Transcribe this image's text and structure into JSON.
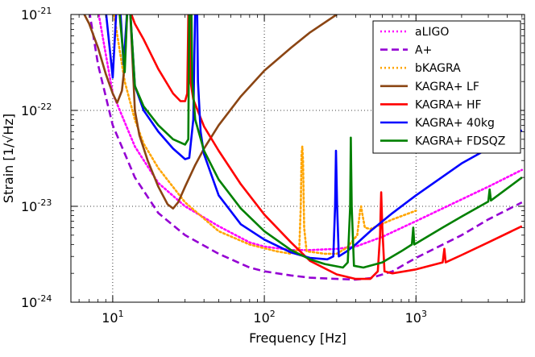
{
  "chart_data": {
    "type": "line",
    "title": "",
    "xlabel": "Frequency [Hz]",
    "ylabel": "Strain [1/√Hz]",
    "xscale": "log",
    "yscale": "log",
    "xlim": [
      5.3,
      5200
    ],
    "ylim": [
      1e-24,
      1e-21
    ],
    "grid": true,
    "legend_position": "top-right",
    "x_ticks": [
      {
        "value": 10,
        "base": "10",
        "exp": "1"
      },
      {
        "value": 100,
        "base": "10",
        "exp": "2"
      },
      {
        "value": 1000,
        "base": "10",
        "exp": "3"
      }
    ],
    "y_ticks": [
      {
        "value": 1e-24,
        "base": "10",
        "exp": "-24"
      },
      {
        "value": 1e-23,
        "base": "10",
        "exp": "-23"
      },
      {
        "value": 1e-22,
        "base": "10",
        "exp": "-22"
      },
      {
        "value": 1e-21,
        "base": "10",
        "exp": "-21"
      }
    ],
    "series": [
      {
        "name": "aLIGO",
        "color": "#ff00ff",
        "style": "dotted",
        "points": [
          [
            8,
            1.1e-21
          ],
          [
            10,
            1.5e-22
          ],
          [
            14,
            4.2e-23
          ],
          [
            20,
            1.75e-23
          ],
          [
            30,
            1e-23
          ],
          [
            50,
            6.2e-24
          ],
          [
            80,
            4.2e-24
          ],
          [
            100,
            3.8e-24
          ],
          [
            150,
            3.5e-24
          ],
          [
            200,
            3.5e-24
          ],
          [
            300,
            3.6e-24
          ],
          [
            400,
            3.8e-24
          ],
          [
            600,
            4.8e-24
          ],
          [
            1000,
            7e-24
          ],
          [
            2000,
            1.18e-23
          ],
          [
            3000,
            1.6e-23
          ],
          [
            5000,
            2.4e-23
          ]
        ]
      },
      {
        "name": "A+",
        "color": "#9400d3",
        "style": "dashed",
        "points": [
          [
            7,
            1.1e-21
          ],
          [
            8,
            3e-22
          ],
          [
            10,
            7e-23
          ],
          [
            14,
            2e-23
          ],
          [
            20,
            8.5e-24
          ],
          [
            30,
            5e-24
          ],
          [
            50,
            3.2e-24
          ],
          [
            80,
            2.3e-24
          ],
          [
            100,
            2.1e-24
          ],
          [
            150,
            1.9e-24
          ],
          [
            200,
            1.8e-24
          ],
          [
            300,
            1.75e-24
          ],
          [
            400,
            1.72e-24
          ],
          [
            500,
            1.78e-24
          ],
          [
            700,
            2.1e-24
          ],
          [
            1000,
            2.9e-24
          ],
          [
            2000,
            5e-24
          ],
          [
            3000,
            7.3e-24
          ],
          [
            5000,
            1.1e-23
          ]
        ]
      },
      {
        "name": "bKAGRA",
        "color": "#ffa500",
        "style": "dotted",
        "points": [
          [
            10,
            1.2e-21
          ],
          [
            12,
            2e-22
          ],
          [
            14,
            8e-23
          ],
          [
            16,
            4.5e-23
          ],
          [
            20,
            2.5e-23
          ],
          [
            30,
            1.1e-23
          ],
          [
            50,
            5.5e-24
          ],
          [
            80,
            4e-24
          ],
          [
            120,
            3.4e-24
          ],
          [
            150,
            3.2e-24
          ],
          [
            170,
            3.6e-24
          ],
          [
            174,
            1e-23
          ],
          [
            176,
            3.5e-23
          ],
          [
            178,
            4.2e-23
          ],
          [
            180,
            3e-23
          ],
          [
            183,
            6e-24
          ],
          [
            190,
            3.4e-24
          ],
          [
            250,
            3.2e-24
          ],
          [
            300,
            3.2e-24
          ],
          [
            350,
            3.7e-24
          ],
          [
            410,
            5e-24
          ],
          [
            428,
            9e-24
          ],
          [
            435,
            1e-23
          ],
          [
            442,
            8.5e-24
          ],
          [
            460,
            6e-24
          ],
          [
            500,
            5.8e-24
          ],
          [
            700,
            7.3e-24
          ],
          [
            1000,
            9e-24
          ]
        ]
      },
      {
        "name": "KAGRA+ LF",
        "color": "#8b4513",
        "style": "solid",
        "points": [
          [
            6.5,
            1e-21
          ],
          [
            7,
            8e-22
          ],
          [
            8,
            4.5e-22
          ],
          [
            9,
            2.4e-22
          ],
          [
            10,
            1.5e-22
          ],
          [
            10.7,
            1.2e-22
          ],
          [
            11.5,
            1.6e-22
          ],
          [
            12,
            3e-22
          ],
          [
            12.5,
            1.2e-21
          ],
          [
            13,
            1.2e-21
          ],
          [
            14,
            1e-22
          ],
          [
            15,
            5.5e-23
          ],
          [
            17,
            3e-23
          ],
          [
            20,
            1.6e-23
          ],
          [
            23,
            1.05e-23
          ],
          [
            25,
            9.5e-24
          ],
          [
            27,
            1.1e-23
          ],
          [
            30,
            1.6e-23
          ],
          [
            35,
            2.7e-23
          ],
          [
            40,
            4e-23
          ],
          [
            50,
            7e-23
          ],
          [
            70,
            1.4e-22
          ],
          [
            100,
            2.6e-22
          ],
          [
            150,
            4.5e-22
          ],
          [
            200,
            6.5e-22
          ],
          [
            300,
            1e-21
          ]
        ]
      },
      {
        "name": "KAGRA+ HF",
        "color": "#ff0000",
        "style": "solid",
        "points": [
          [
            13,
            1.1e-21
          ],
          [
            14,
            8e-22
          ],
          [
            16,
            5.5e-22
          ],
          [
            20,
            2.7e-22
          ],
          [
            25,
            1.5e-22
          ],
          [
            28,
            1.25e-22
          ],
          [
            30,
            1.25e-22
          ],
          [
            31,
            1.5e-22
          ],
          [
            31.6,
            1.2e-21
          ],
          [
            32.2,
            1.2e-21
          ],
          [
            32.6,
            2e-22
          ],
          [
            34,
            1.3e-22
          ],
          [
            40,
            6.8e-23
          ],
          [
            50,
            3.8e-23
          ],
          [
            70,
            1.7e-23
          ],
          [
            100,
            8.2e-24
          ],
          [
            150,
            4.2e-24
          ],
          [
            200,
            2.7e-24
          ],
          [
            300,
            1.95e-24
          ],
          [
            400,
            1.75e-24
          ],
          [
            500,
            1.75e-24
          ],
          [
            560,
            2.1e-24
          ],
          [
            580,
            5e-24
          ],
          [
            590,
            1.4e-23
          ],
          [
            600,
            6e-24
          ],
          [
            620,
            2.1e-24
          ],
          [
            700,
            2e-24
          ],
          [
            1000,
            2.2e-24
          ],
          [
            1500,
            2.6e-24
          ],
          [
            1540,
            3.6e-24
          ],
          [
            1570,
            2.6e-24
          ],
          [
            2000,
            3.1e-24
          ],
          [
            3000,
            4.2e-24
          ],
          [
            5000,
            6.2e-24
          ]
        ]
      },
      {
        "name": "KAGRA+ 40kg",
        "color": "#0000ff",
        "style": "solid",
        "points": [
          [
            9,
            1.1e-21
          ],
          [
            10,
            2.2e-22
          ],
          [
            10.6,
            1.2e-21
          ],
          [
            11.2,
            1.2e-21
          ],
          [
            11.8,
            3e-22
          ],
          [
            12.5,
            1.2e-21
          ],
          [
            13,
            1.2e-21
          ],
          [
            14,
            1.8e-22
          ],
          [
            16,
            1e-22
          ],
          [
            20,
            6e-23
          ],
          [
            25,
            4e-23
          ],
          [
            30,
            3.1e-23
          ],
          [
            32,
            3.2e-23
          ],
          [
            34,
            8e-23
          ],
          [
            35,
            1.2e-21
          ],
          [
            36,
            1.2e-21
          ],
          [
            36.5,
            2e-22
          ],
          [
            38,
            6e-23
          ],
          [
            40,
            3.5e-23
          ],
          [
            50,
            1.3e-23
          ],
          [
            70,
            6.5e-24
          ],
          [
            100,
            4.5e-24
          ],
          [
            150,
            3.3e-24
          ],
          [
            200,
            2.9e-24
          ],
          [
            260,
            2.8e-24
          ],
          [
            285,
            3e-24
          ],
          [
            293,
            1e-23
          ],
          [
            297,
            3.8e-23
          ],
          [
            302,
            1e-23
          ],
          [
            310,
            3e-24
          ],
          [
            350,
            3.4e-24
          ],
          [
            400,
            4e-24
          ],
          [
            500,
            5.5e-24
          ],
          [
            700,
            8.5e-24
          ],
          [
            1000,
            1.3e-23
          ],
          [
            2000,
            2.8e-23
          ],
          [
            3000,
            4e-23
          ],
          [
            5000,
            6.2e-23
          ]
        ]
      },
      {
        "name": "KAGRA+ FDSQZ",
        "color": "#008000",
        "style": "solid",
        "points": [
          [
            11,
            1.2e-21
          ],
          [
            12,
            2.5e-22
          ],
          [
            12.5,
            1.2e-21
          ],
          [
            13,
            1.2e-21
          ],
          [
            14,
            1.8e-22
          ],
          [
            16,
            1.1e-22
          ],
          [
            20,
            7e-23
          ],
          [
            25,
            5e-23
          ],
          [
            30,
            4.4e-23
          ],
          [
            31.5,
            5e-23
          ],
          [
            32,
            1.2e-21
          ],
          [
            33,
            1.2e-21
          ],
          [
            33.5,
            2e-22
          ],
          [
            35,
            8e-23
          ],
          [
            40,
            3.8e-23
          ],
          [
            50,
            1.9e-23
          ],
          [
            70,
            9.5e-24
          ],
          [
            100,
            5.5e-24
          ],
          [
            150,
            3.5e-24
          ],
          [
            200,
            2.8e-24
          ],
          [
            250,
            2.5e-24
          ],
          [
            330,
            2.3e-24
          ],
          [
            355,
            2.6e-24
          ],
          [
            368,
            1e-23
          ],
          [
            372,
            5.2e-23
          ],
          [
            377,
            1e-23
          ],
          [
            390,
            2.4e-24
          ],
          [
            450,
            2.3e-24
          ],
          [
            600,
            2.6e-24
          ],
          [
            800,
            3.4e-24
          ],
          [
            940,
            4e-24
          ],
          [
            960,
            6e-24
          ],
          [
            975,
            4e-24
          ],
          [
            1500,
            6e-24
          ],
          [
            2000,
            7.8e-24
          ],
          [
            3000,
            1.12e-23
          ],
          [
            3060,
            1.5e-23
          ],
          [
            3120,
            1.15e-23
          ],
          [
            5000,
            2e-23
          ]
        ]
      }
    ]
  }
}
